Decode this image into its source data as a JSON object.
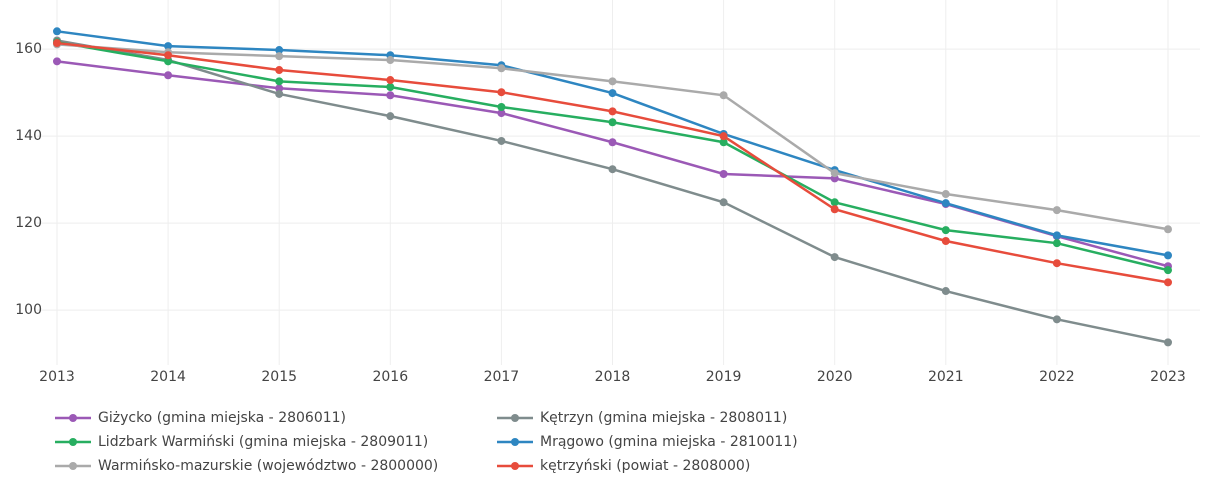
{
  "chart_data": {
    "type": "line",
    "x": [
      2013,
      2014,
      2015,
      2016,
      2017,
      2018,
      2019,
      2020,
      2021,
      2022,
      2023
    ],
    "xlim": [
      2013,
      2023
    ],
    "xticks": [
      2013,
      2014,
      2015,
      2016,
      2017,
      2018,
      2019,
      2020,
      2021,
      2022,
      2023
    ],
    "ylim": [
      87.4,
      166.7
    ],
    "yticks": [
      100,
      120,
      140,
      160
    ],
    "grid": true,
    "series": [
      {
        "name": "Giżycko (gmina miejska - 2806011)",
        "color": "#9b59b6",
        "values": [
          157.2,
          154.0,
          151.0,
          149.4,
          145.3,
          138.6,
          131.3,
          130.3,
          124.4,
          117.0,
          110.1
        ]
      },
      {
        "name": "Kętrzyn (gmina miejska - 2808011)",
        "color": "#7f8c8d",
        "values": [
          162.0,
          157.5,
          149.7,
          144.6,
          138.9,
          132.4,
          124.8,
          112.2,
          104.4,
          97.9,
          92.6
        ]
      },
      {
        "name": "Lidzbark Warmiński (gmina miejska - 2809011)",
        "color": "#27ae60",
        "values": [
          161.6,
          157.2,
          152.6,
          151.3,
          146.7,
          143.2,
          138.6,
          124.8,
          118.4,
          115.4,
          109.2
        ]
      },
      {
        "name": "Mrągowo (gmina miejska - 2810011)",
        "color": "#2e86c1",
        "values": [
          164.1,
          160.7,
          159.8,
          158.6,
          156.3,
          149.9,
          140.5,
          132.2,
          124.6,
          117.2,
          112.6
        ]
      },
      {
        "name": "Warmińsko-mazurskie (województwo - 2800000)",
        "color": "#aaaaaa",
        "values": [
          161.1,
          159.3,
          158.4,
          157.5,
          155.6,
          152.6,
          149.4,
          131.5,
          126.7,
          123.0,
          118.6
        ]
      },
      {
        "name": "kętrzyński (powiat - 2808000)",
        "color": "#e74c3c",
        "values": [
          161.4,
          158.6,
          155.2,
          152.9,
          150.1,
          145.7,
          140.0,
          123.2,
          115.9,
          110.8,
          106.4
        ]
      }
    ]
  }
}
